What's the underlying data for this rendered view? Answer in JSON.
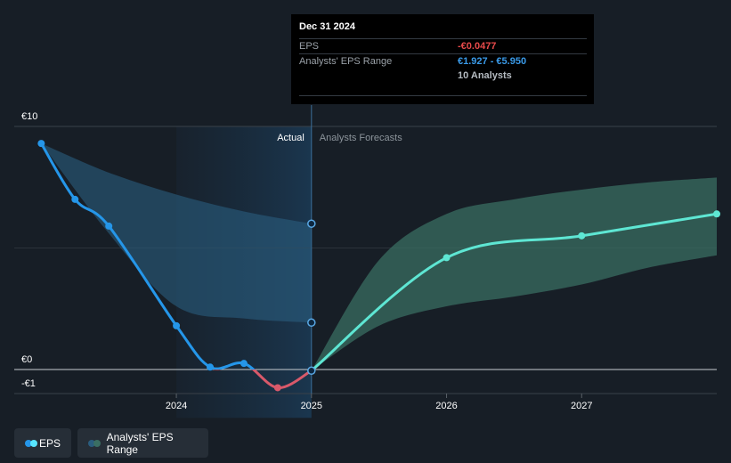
{
  "chart_data": {
    "type": "line",
    "y_ticks": [
      {
        "label": "€10",
        "value": 10
      },
      {
        "label": "€0",
        "value": 0
      },
      {
        "label": "-€1",
        "value": -1
      }
    ],
    "ylim": [
      -1,
      10
    ],
    "x_ticks": [
      {
        "label": "2024",
        "value": 2024
      },
      {
        "label": "2025",
        "value": 2025
      },
      {
        "label": "2026",
        "value": 2026
      },
      {
        "label": "2027",
        "value": 2027
      }
    ],
    "xlim": [
      2022.8,
      2028.0
    ],
    "divider_x": 2025.0,
    "actual_label": "Actual",
    "forecast_label": "Analysts Forecasts",
    "series": [
      {
        "name": "EPS",
        "color": "#2596e9",
        "negative_color": "#d9596a",
        "points": [
          {
            "x": 2023.0,
            "y": 9.3
          },
          {
            "x": 2023.25,
            "y": 7.0
          },
          {
            "x": 2023.5,
            "y": 5.9
          },
          {
            "x": 2024.0,
            "y": 1.8
          },
          {
            "x": 2024.25,
            "y": 0.1
          },
          {
            "x": 2024.5,
            "y": 0.25
          },
          {
            "x": 2024.75,
            "y": -0.75
          },
          {
            "x": 2025.0,
            "y": -0.0477
          }
        ]
      },
      {
        "name": "EPS Forecast",
        "color": "#5ee6d3",
        "points": [
          {
            "x": 2025.0,
            "y": -0.0477
          },
          {
            "x": 2026.0,
            "y": 4.6
          },
          {
            "x": 2027.0,
            "y": 5.5
          },
          {
            "x": 2028.0,
            "y": 6.4
          }
        ]
      }
    ],
    "range_past": {
      "color": "#2a5d7e",
      "x": [
        2023.0,
        2023.5,
        2024.0,
        2024.5,
        2025.0
      ],
      "high": [
        9.3,
        8.1,
        7.2,
        6.5,
        6.0
      ],
      "low": [
        9.3,
        5.6,
        2.6,
        2.1,
        1.93
      ]
    },
    "range_forecast": {
      "color": "#3a6e62",
      "x": [
        2025.0,
        2025.5,
        2026.0,
        2026.5,
        2027.0,
        2027.5,
        2028.0
      ],
      "high": [
        -0.0477,
        4.5,
        6.4,
        7.0,
        7.4,
        7.7,
        7.9
      ],
      "low": [
        -0.0477,
        1.8,
        2.6,
        3.0,
        3.5,
        4.2,
        4.7
      ]
    },
    "highlight_x": 2025.0,
    "highlight_points": [
      6.0,
      1.93,
      -0.0477
    ]
  },
  "tooltip": {
    "date": "Dec 31 2024",
    "eps_label": "EPS",
    "eps_value": "-€0.0477",
    "eps_color": "#e64a4a",
    "range_label": "Analysts' EPS Range",
    "range_value": "€1.927 - €5.950",
    "range_color": "#3a9ae8",
    "analysts": "10 Analysts"
  },
  "legend": {
    "eps_label": "EPS",
    "range_label": "Analysts' EPS Range"
  }
}
